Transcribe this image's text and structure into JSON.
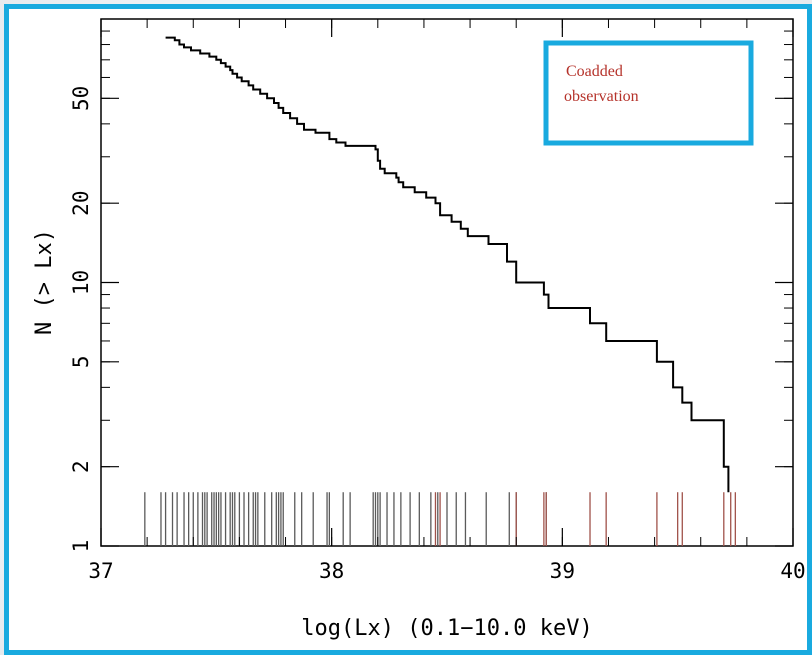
{
  "chart_data": {
    "type": "line",
    "xlabel": "log(Lx) (0.1−10.0 keV)",
    "ylabel": "N (> Lx)",
    "xlim": [
      37.0,
      40.0
    ],
    "ylim": [
      1,
      100
    ],
    "y_scale": "log",
    "x_ticks": [
      "37",
      "38",
      "39",
      "40"
    ],
    "y_ticks": [
      {
        "value": 1,
        "label": "1"
      },
      {
        "value": 2,
        "label": "2"
      },
      {
        "value": 5,
        "label": "5"
      },
      {
        "value": 10,
        "label": "10"
      },
      {
        "value": 20,
        "label": "20"
      },
      {
        "value": 50,
        "label": "50"
      }
    ],
    "legend": {
      "text_lines": [
        "Coadded",
        "observation"
      ],
      "position": "top-right",
      "color": "#b5322a",
      "border_color": "#19aadf"
    },
    "series": [
      {
        "type": "step",
        "color": "#000000",
        "points": [
          [
            37.28,
            85
          ],
          [
            37.32,
            83
          ],
          [
            37.34,
            80
          ],
          [
            37.36,
            78
          ],
          [
            37.39,
            76
          ],
          [
            37.43,
            74
          ],
          [
            37.47,
            72
          ],
          [
            37.5,
            70
          ],
          [
            37.52,
            68
          ],
          [
            37.54,
            66
          ],
          [
            37.56,
            64
          ],
          [
            37.57,
            62
          ],
          [
            37.59,
            60
          ],
          [
            37.61,
            58
          ],
          [
            37.64,
            56
          ],
          [
            37.66,
            54
          ],
          [
            37.69,
            52
          ],
          [
            37.72,
            50
          ],
          [
            37.75,
            48
          ],
          [
            37.77,
            46
          ],
          [
            37.79,
            44
          ],
          [
            37.82,
            42
          ],
          [
            37.85,
            40
          ],
          [
            37.88,
            38
          ],
          [
            37.93,
            37
          ],
          [
            37.99,
            35
          ],
          [
            38.02,
            34
          ],
          [
            38.06,
            33
          ],
          [
            38.19,
            32
          ],
          [
            38.2,
            29
          ],
          [
            38.21,
            27
          ],
          [
            38.23,
            26
          ],
          [
            38.28,
            25
          ],
          [
            38.29,
            24
          ],
          [
            38.31,
            23
          ],
          [
            38.36,
            22
          ],
          [
            38.41,
            21
          ],
          [
            38.45,
            20
          ],
          [
            38.47,
            18
          ],
          [
            38.52,
            17
          ],
          [
            38.56,
            16
          ],
          [
            38.59,
            15
          ],
          [
            38.68,
            14
          ],
          [
            38.76,
            12
          ],
          [
            38.8,
            10
          ],
          [
            38.92,
            9
          ],
          [
            38.94,
            8
          ],
          [
            39.12,
            7
          ],
          [
            39.19,
            6
          ],
          [
            39.41,
            5
          ],
          [
            39.48,
            4
          ],
          [
            39.52,
            3.5
          ],
          [
            39.56,
            3
          ],
          [
            39.7,
            2
          ],
          [
            39.72,
            2
          ]
        ]
      }
    ],
    "rug": {
      "black": [
        37.19,
        37.26,
        37.28,
        37.31,
        37.33,
        37.36,
        37.38,
        37.4,
        37.42,
        37.44,
        37.45,
        37.46,
        37.48,
        37.49,
        37.5,
        37.51,
        37.52,
        37.54,
        37.56,
        37.57,
        37.58,
        37.6,
        37.62,
        37.64,
        37.66,
        37.67,
        37.68,
        37.71,
        37.74,
        37.76,
        37.77,
        37.78,
        37.79,
        37.84,
        37.87,
        37.92,
        37.98,
        37.99,
        38.05,
        38.08,
        38.18,
        38.19,
        38.2,
        38.21,
        38.24,
        38.27,
        38.3,
        38.34,
        38.38,
        38.43,
        38.46,
        38.5,
        38.54,
        38.58,
        38.67,
        38.77,
        38.8,
        38.93
      ],
      "red": [
        38.45,
        38.47,
        38.8,
        38.92,
        38.93,
        39.12,
        39.19,
        39.41,
        39.5,
        39.52,
        39.7,
        39.73,
        39.75
      ]
    },
    "rug_colors": {
      "black": "#5a5a5a",
      "red": "#a0524a"
    },
    "grid": false
  }
}
